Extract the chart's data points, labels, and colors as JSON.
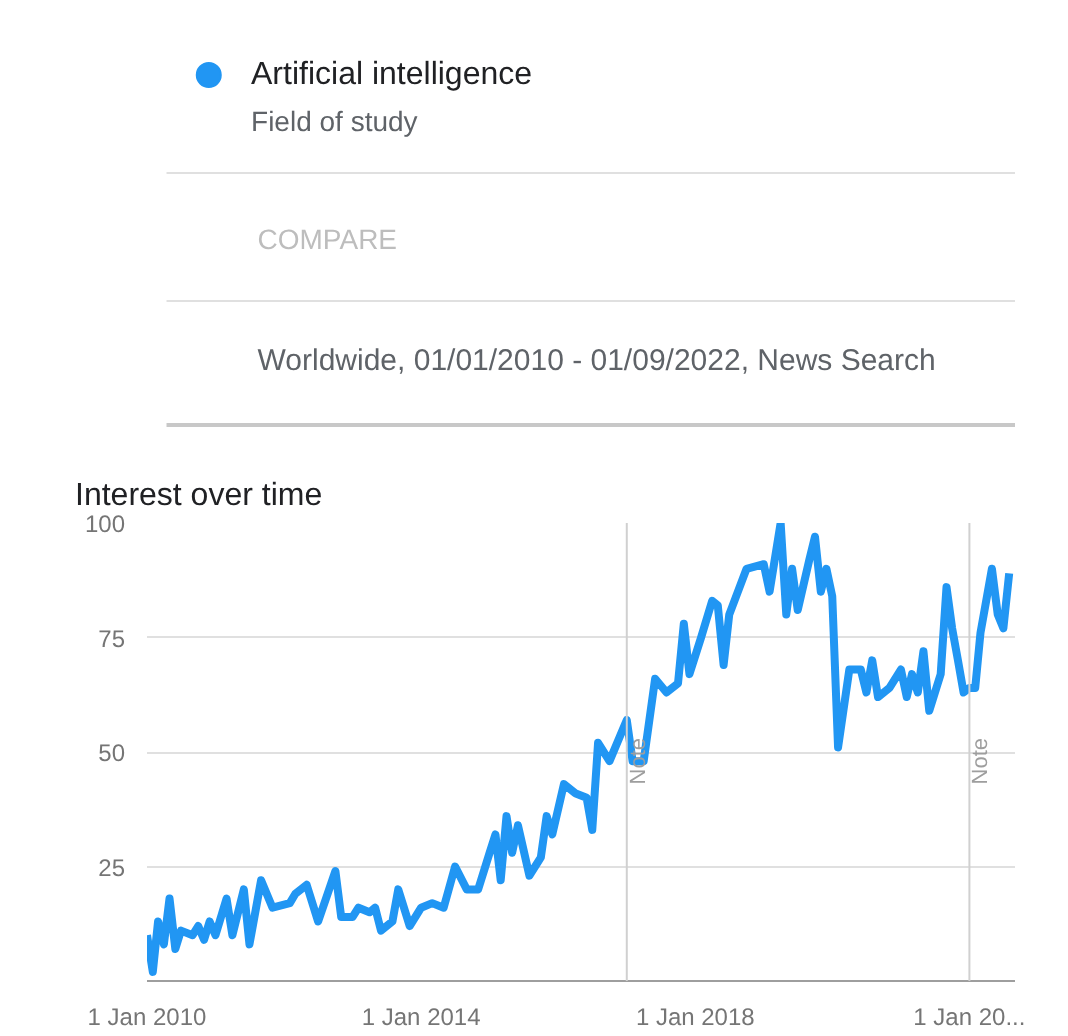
{
  "chart_data": {
    "type": "line",
    "title": "Interest over time",
    "subtitle": "Worldwide, 01/01/2010 - 01/09/2022, News Search",
    "annotations": [
      "Field of study",
      "COMPARE"
    ],
    "x": [
      "2010-01",
      "2010-02",
      "2010-03",
      "2010-04",
      "2010-05",
      "2010-06",
      "2010-07",
      "2010-09",
      "2010-10",
      "2010-11",
      "2010-12",
      "2011-01",
      "2011-03",
      "2011-04",
      "2011-06",
      "2011-07",
      "2011-09",
      "2011-11",
      "2012-02",
      "2012-03",
      "2012-05",
      "2012-07",
      "2012-10",
      "2012-11",
      "2013-01",
      "2013-02",
      "2013-04",
      "2013-05",
      "2013-06",
      "2013-08",
      "2013-09",
      "2013-11",
      "2014-01",
      "2014-03",
      "2014-05",
      "2014-07",
      "2014-09",
      "2014-11",
      "2015-01",
      "2015-02",
      "2015-03",
      "2015-04",
      "2015-05",
      "2015-06",
      "2015-08",
      "2015-10",
      "2015-11",
      "2015-12",
      "2016-02",
      "2016-04",
      "2016-06",
      "2016-07",
      "2016-08",
      "2016-10",
      "2017-01",
      "2017-02",
      "2017-04",
      "2017-06",
      "2017-08",
      "2017-10",
      "2017-11",
      "2017-12",
      "2018-02",
      "2018-04",
      "2018-05",
      "2018-06",
      "2018-07",
      "2018-10",
      "2019-01",
      "2019-02",
      "2019-04",
      "2019-05",
      "2019-06",
      "2019-07",
      "2019-09",
      "2019-10",
      "2019-11",
      "2019-12",
      "2020-01",
      "2020-02",
      "2020-04",
      "2020-06",
      "2020-07",
      "2020-08",
      "2020-09",
      "2020-11",
      "2021-01",
      "2021-02",
      "2021-03",
      "2021-04",
      "2021-05",
      "2021-06",
      "2021-08",
      "2021-09",
      "2021-10",
      "2021-11",
      "2021-12",
      "2022-01",
      "2022-02",
      "2022-03",
      "2022-05",
      "2022-06",
      "2022-07",
      "2022-08"
    ],
    "series": [
      {
        "name": "Artificial intelligence",
        "color": "#2196f3",
        "values": [
          10,
          2,
          13,
          8,
          18,
          7,
          11,
          10,
          12,
          9,
          13,
          10,
          18,
          10,
          20,
          8,
          22,
          16,
          17,
          19,
          21,
          13,
          24,
          14,
          14,
          16,
          15,
          16,
          11,
          13,
          20,
          12,
          16,
          17,
          16,
          25,
          20,
          20,
          28,
          32,
          22,
          36,
          28,
          34,
          23,
          27,
          36,
          32,
          43,
          41,
          40,
          33,
          52,
          48,
          57,
          48,
          48,
          66,
          63,
          65,
          78,
          67,
          75,
          83,
          82,
          69,
          80,
          90,
          91,
          85,
          100,
          80,
          90,
          81,
          92,
          97,
          85,
          90,
          84,
          51,
          68,
          68,
          63,
          70,
          62,
          64,
          68,
          62,
          67,
          63,
          72,
          59,
          67,
          86,
          77,
          70,
          63,
          64,
          64,
          76,
          90,
          80,
          77,
          89
        ]
      }
    ],
    "xlim": [
      "2010-01-01",
      "2022-09-01"
    ],
    "xticks": [
      {
        "value": "2010-01-01",
        "label": "1 Jan 2010"
      },
      {
        "value": "2014-01-01",
        "label": "1 Jan 2014"
      },
      {
        "value": "2018-01-01",
        "label": "1 Jan 2018"
      },
      {
        "value": "2022-01-01",
        "label": "1 Jan 20..."
      }
    ],
    "ylim": [
      0,
      100
    ],
    "yticks": [
      25,
      50,
      75,
      100
    ],
    "grid": "y",
    "legend": "top",
    "ref_lines": [
      {
        "axis": "x",
        "value": "2017-01-01",
        "label": "Note"
      },
      {
        "axis": "x",
        "value": "2022-01-01",
        "label": "Note"
      }
    ]
  }
}
